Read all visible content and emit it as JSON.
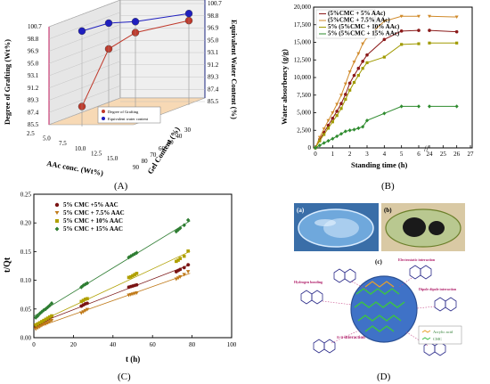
{
  "panels": {
    "A": "(A)",
    "B": "(B)",
    "C": "(C)",
    "D": "(D)"
  },
  "chart_data": [
    {
      "id": "A",
      "type": "scatter",
      "subtype": "3d-line",
      "xlabel": "AAc conc. (Wt%)",
      "ylabel": "Degree of Grafting (Wt%)",
      "zlabel_right": "Equivalent Water Content (%)",
      "depth_label": "Gel Content (%)",
      "x_ticks": [
        "2.5",
        "5.0",
        "7.5",
        "10.0",
        "12.5",
        "15.0"
      ],
      "depth_ticks": [
        "30",
        "40",
        "50",
        "60",
        "70",
        "80",
        "90"
      ],
      "y_ticks": [
        "85.5",
        "87.4",
        "89.3",
        "91.2",
        "93.1",
        "95.0",
        "96.9",
        "98.8",
        "100.7"
      ],
      "y_ticks_right": [
        "85.5",
        "87.4",
        "89.3",
        "91.2",
        "93.1",
        "95.0",
        "96.9",
        "98.8",
        "100.7"
      ],
      "legend": [
        "Degree of Grafting",
        "Equivalent water content"
      ],
      "series": [
        {
          "name": "Degree of Grafting",
          "color": "#c0392b",
          "x": [
            5,
            7.5,
            10,
            15
          ],
          "values": [
            87.5,
            95.6,
            97.3,
            97.5
          ]
        },
        {
          "name": "Equivalent water content",
          "color": "#1f1fbf",
          "x": [
            5,
            7.5,
            10,
            15
          ],
          "values": [
            99.2,
            99.6,
            99.0,
            98.6
          ]
        }
      ]
    },
    {
      "id": "B",
      "type": "line",
      "xlabel": "Standing time (h)",
      "ylabel": "Water absorbency (g/g)",
      "xlim": [
        0,
        27
      ],
      "ylim": [
        0,
        20000
      ],
      "x_ticks": [
        "0",
        "1",
        "2",
        "3",
        "4",
        "5",
        "6",
        "24",
        "25",
        "26",
        "27"
      ],
      "y_ticks": [
        "0",
        "2,500",
        "5,000",
        "7,500",
        "10,000",
        "12,500",
        "15,000",
        "17,500",
        "20,000"
      ],
      "x_break": "//",
      "legend": [
        "(5%CMC + 5% AAc)",
        "(5%CMC + 7.5% AAc)",
        "5% (5%CMC + 10% AAc)",
        "5% (5%CMC + 15% AAc)"
      ],
      "x": [
        0,
        0.25,
        0.5,
        0.75,
        1,
        1.25,
        1.5,
        1.75,
        2,
        2.25,
        2.5,
        2.75,
        3,
        4,
        5,
        6,
        24,
        26
      ],
      "series": [
        {
          "name": "(5%CMC + 5% AAc)",
          "color": "#8b1a1a",
          "values": [
            0,
            1200,
            2200,
            3200,
            4200,
            5200,
            6300,
            7600,
            9200,
            10300,
            11300,
            12300,
            13200,
            15400,
            16600,
            16700,
            16700,
            16500
          ]
        },
        {
          "name": "(5%CMC + 7.5% AAc)",
          "color": "#d08a2a",
          "values": [
            0,
            1500,
            2700,
            3900,
            5000,
            6200,
            7500,
            9100,
            10800,
            12200,
            13400,
            14800,
            15700,
            18000,
            18700,
            18700,
            18700,
            18600
          ]
        },
        {
          "name": "5% (5%CMC + 10% AAc)",
          "color": "#a09a00",
          "values": [
            0,
            1000,
            1900,
            2800,
            3700,
            4600,
            5600,
            6900,
            8200,
            9300,
            10300,
            11300,
            12100,
            12900,
            14700,
            14800,
            14900,
            14900
          ]
        },
        {
          "name": "5% (5%CMC + 15% AAc)",
          "color": "#2e8b2e",
          "values": [
            0,
            350,
            700,
            1000,
            1300,
            1650,
            2000,
            2350,
            2500,
            2600,
            2800,
            3000,
            3900,
            4900,
            5900,
            5900,
            5900,
            5900
          ]
        }
      ]
    },
    {
      "id": "C",
      "type": "scatter",
      "xlabel": "t (h)",
      "ylabel": "t/Qt",
      "xlim": [
        0,
        100
      ],
      "ylim": [
        0,
        0.25
      ],
      "x_ticks": [
        "0",
        "20",
        "40",
        "60",
        "80",
        "100"
      ],
      "y_ticks": [
        "0.00",
        "0.05",
        "0.10",
        "0.15",
        "0.20",
        "0.25"
      ],
      "series": [
        {
          "name": "5% CMC +5% AAC",
          "color": "#7a1414",
          "marker": "circle",
          "x": [
            1,
            2,
            3,
            4,
            5,
            6,
            7,
            8,
            9,
            24,
            25,
            26,
            27,
            48,
            49,
            50,
            51,
            52,
            72,
            73,
            74,
            76,
            78
          ],
          "values": [
            0.02,
            0.022,
            0.024,
            0.026,
            0.028,
            0.03,
            0.032,
            0.034,
            0.037,
            0.055,
            0.057,
            0.059,
            0.06,
            0.088,
            0.089,
            0.09,
            0.091,
            0.092,
            0.115,
            0.117,
            0.119,
            0.122,
            0.127
          ]
        },
        {
          "name": "5% CMC + 7.5% AAC",
          "color": "#c07a1a",
          "marker": "triangle-down",
          "x": [
            1,
            2,
            3,
            4,
            5,
            6,
            7,
            8,
            9,
            24,
            25,
            26,
            27,
            48,
            49,
            50,
            51,
            52,
            72,
            73,
            74,
            76,
            78
          ],
          "values": [
            0.015,
            0.017,
            0.019,
            0.021,
            0.023,
            0.024,
            0.026,
            0.028,
            0.03,
            0.043,
            0.045,
            0.047,
            0.049,
            0.074,
            0.075,
            0.076,
            0.077,
            0.078,
            0.102,
            0.104,
            0.106,
            0.11,
            0.115
          ]
        },
        {
          "name": "5% CMC + 10% AAC",
          "color": "#b0a000",
          "marker": "square",
          "x": [
            1,
            2,
            3,
            4,
            5,
            6,
            7,
            8,
            9,
            24,
            25,
            26,
            27,
            48,
            49,
            50,
            51,
            52,
            72,
            73,
            74,
            76,
            78
          ],
          "values": [
            0.022,
            0.024,
            0.026,
            0.028,
            0.03,
            0.032,
            0.034,
            0.036,
            0.038,
            0.063,
            0.065,
            0.067,
            0.068,
            0.105,
            0.106,
            0.108,
            0.11,
            0.112,
            0.133,
            0.135,
            0.138,
            0.142,
            0.151
          ]
        },
        {
          "name": "5% CMC + 15% AAC",
          "color": "#2e7d32",
          "marker": "diamond",
          "x": [
            1,
            2,
            3,
            4,
            5,
            6,
            7,
            8,
            9,
            24,
            25,
            26,
            27,
            48,
            49,
            50,
            51,
            52,
            72,
            73,
            74,
            76,
            78
          ],
          "values": [
            0.035,
            0.038,
            0.042,
            0.045,
            0.048,
            0.05,
            0.053,
            0.056,
            0.06,
            0.088,
            0.091,
            0.093,
            0.095,
            0.14,
            0.142,
            0.144,
            0.146,
            0.148,
            0.185,
            0.188,
            0.191,
            0.196,
            0.205
          ]
        }
      ]
    }
  ],
  "figureD": {
    "label_a": "(a)",
    "label_b": "(b)",
    "label_c": "(c)",
    "labels": [
      "Electrostatic interaction",
      "Hydrogen bonding",
      "Dipole dipole interaction",
      "π-π interaction",
      "Acrylic acid",
      "CMC"
    ]
  }
}
